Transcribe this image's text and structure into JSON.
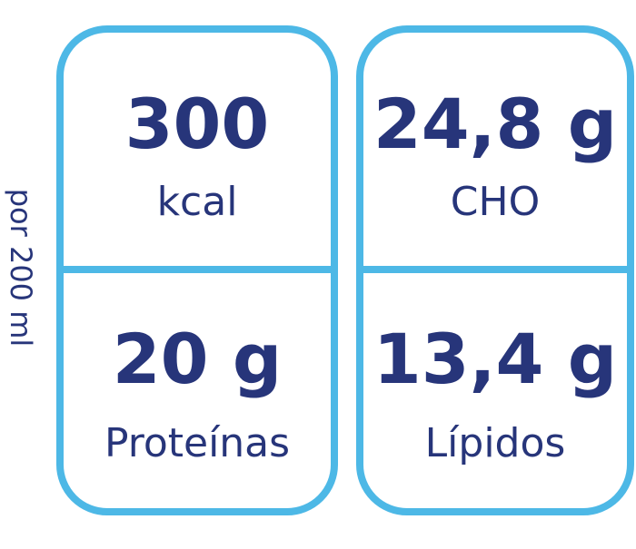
{
  "side_label": "por 200 ml",
  "panels": [
    {
      "value": "300",
      "label": "kcal"
    },
    {
      "value": "24,8 g",
      "label": "CHO"
    },
    {
      "value": "20 g",
      "label": "Proteínas"
    },
    {
      "value": "13,4 g",
      "label": "Lípidos"
    }
  ]
}
